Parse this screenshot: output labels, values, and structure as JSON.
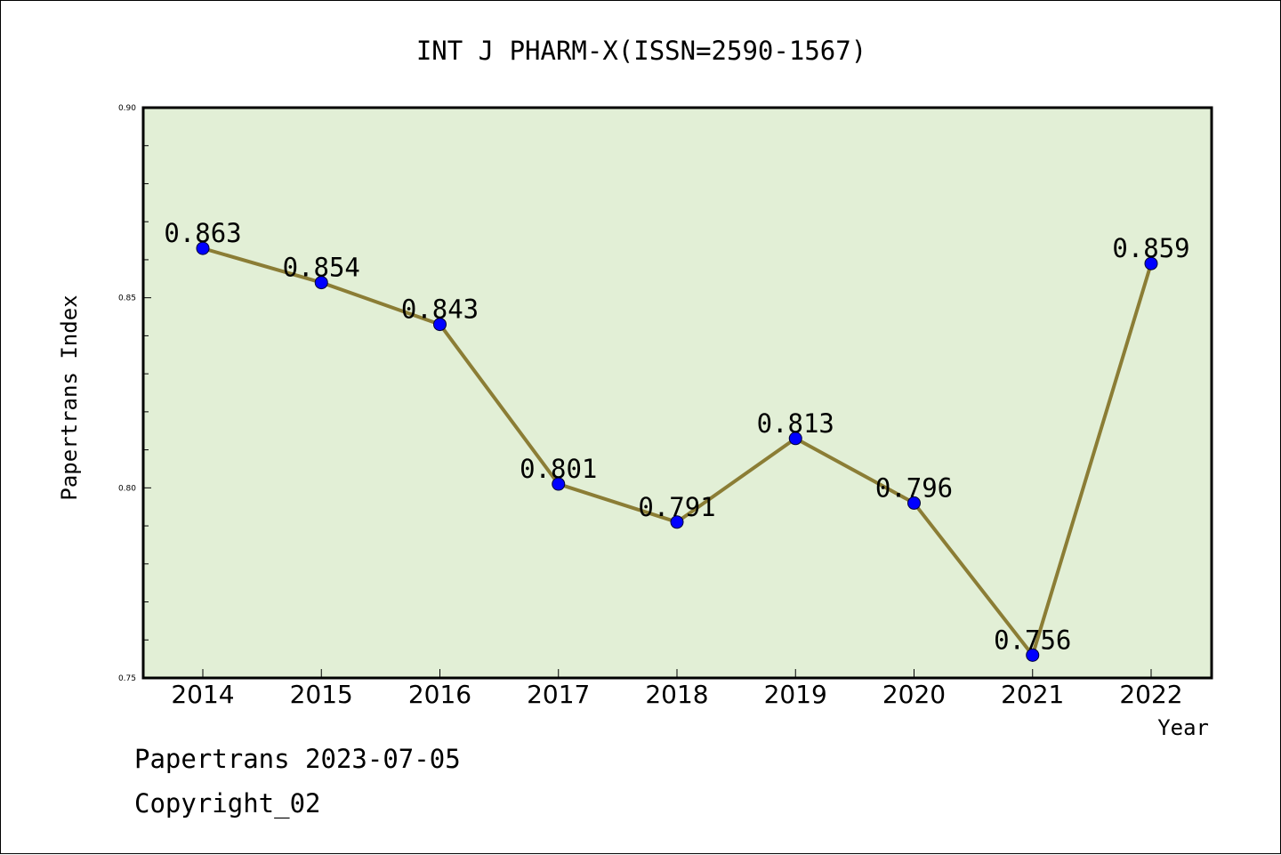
{
  "colors": {
    "plot_background": "#e2efd6",
    "line": "#8b7d35",
    "marker": "#0000ff",
    "axes": "#000000"
  },
  "chart_data": {
    "type": "line",
    "title": "INT J PHARM-X(ISSN=2590-1567)",
    "xlabel": "Year",
    "ylabel": "Papertrans Index",
    "ylim": [
      0.75,
      0.9
    ],
    "yticks": [
      "0.75",
      "0.80",
      "0.85",
      "0.90"
    ],
    "grid": false,
    "marker_shape": "circle",
    "categories": [
      "2014",
      "2015",
      "2016",
      "2017",
      "2018",
      "2019",
      "2020",
      "2021",
      "2022"
    ],
    "values": [
      0.863,
      0.854,
      0.843,
      0.801,
      0.791,
      0.813,
      0.796,
      0.756,
      0.859
    ],
    "data_labels": [
      "0.863",
      "0.854",
      "0.843",
      "0.801",
      "0.791",
      "0.813",
      "0.796",
      "0.756",
      "0.859"
    ]
  },
  "footer": {
    "line1": "Papertrans 2023-07-05",
    "line2": "Copyright_02"
  }
}
